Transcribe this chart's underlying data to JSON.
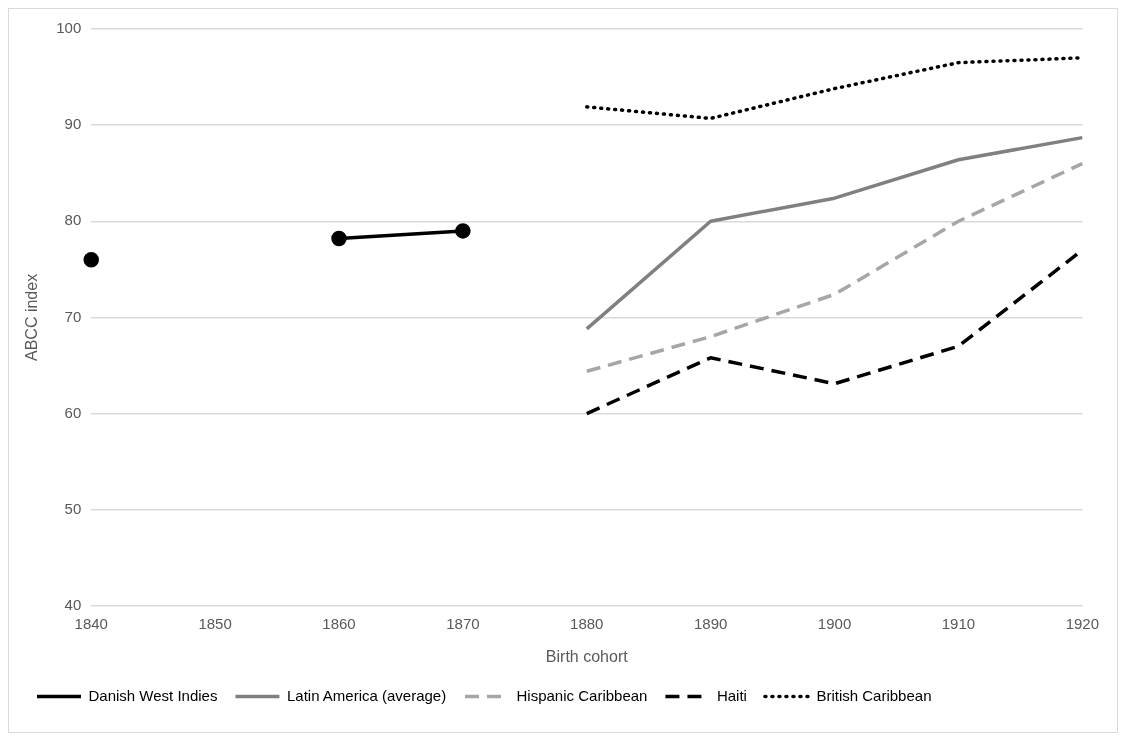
{
  "chart_data": {
    "type": "line",
    "xlabel": "Birth cohort",
    "ylabel": "ABCC index",
    "categories": [
      "1840",
      "1850",
      "1860",
      "1870",
      "1880",
      "1890",
      "1900",
      "1910",
      "1920"
    ],
    "ylim": [
      40,
      100
    ],
    "yticks": [
      40,
      50,
      60,
      70,
      80,
      90,
      100
    ],
    "grid": "y",
    "legend": "bottom",
    "series": [
      {
        "name": "Danish West Indies",
        "color": "#000000",
        "marker": "circle",
        "line_style": "solid",
        "values": [
          76,
          null,
          78.2,
          79,
          null,
          null,
          null,
          null,
          null
        ]
      },
      {
        "name": "Latin America (average)",
        "color": "#808080",
        "marker": "none",
        "line_style": "solid",
        "values": [
          null,
          null,
          null,
          null,
          68.8,
          80,
          82.4,
          86.4,
          88.7
        ]
      },
      {
        "name": "Hispanic Caribbean",
        "color": "#a6a6a6",
        "marker": "none",
        "line_style": "dashed",
        "values": [
          null,
          null,
          null,
          null,
          64.4,
          68,
          72.4,
          80,
          86
        ]
      },
      {
        "name": "Haiti",
        "color": "#000000",
        "marker": "none",
        "line_style": "dashed",
        "values": [
          null,
          null,
          null,
          null,
          60,
          65.8,
          63.1,
          67,
          77
        ]
      },
      {
        "name": "British Caribbean",
        "color": "#000000",
        "marker": "none",
        "line_style": "dotted",
        "values": [
          null,
          null,
          null,
          null,
          91.9,
          90.7,
          93.8,
          96.5,
          97
        ]
      }
    ]
  }
}
